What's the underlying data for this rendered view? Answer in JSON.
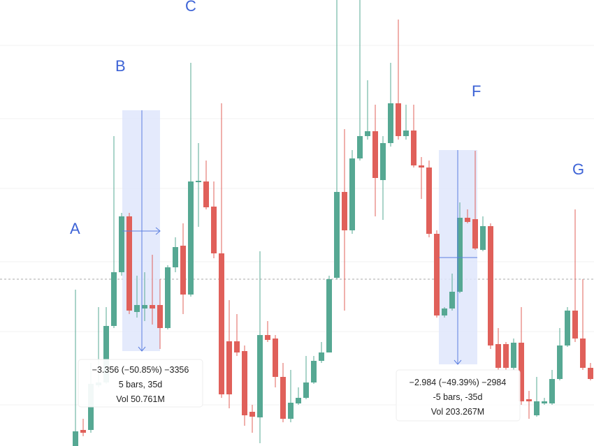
{
  "chart_data": {
    "type": "candlestick",
    "up_color": "#56a893",
    "down_color": "#e0605a",
    "ylim": [
      0,
      639
    ],
    "open": [
      0,
      23,
      23,
      87,
      91,
      172,
      249,
      329,
      192,
      197,
      202,
      202,
      169,
      256,
      287,
      217,
      378,
      379,
      343,
      276,
      150,
      150,
      136,
      49,
      41,
      159,
      154,
      99,
      39,
      61,
      69,
      91,
      122,
      134,
      241,
      364,
      309,
      412,
      444,
      451,
      381,
      434,
      491,
      444,
      452,
      402,
      399,
      304,
      187,
      197,
      221,
      327,
      325,
      281,
      315,
      146,
      146,
      112,
      148,
      67,
      44,
      61,
      61,
      96,
      144,
      194,
      154,
      112
    ],
    "high": [
      224,
      39,
      119,
      199,
      199,
      444,
      334,
      334,
      244,
      249,
      274,
      239,
      259,
      299,
      319,
      549,
      434,
      409,
      379,
      491,
      209,
      189,
      144,
      59,
      279,
      179,
      159,
      119,
      109,
      84,
      129,
      129,
      149,
      244,
      639,
      454,
      424,
      639,
      524,
      489,
      444,
      549,
      611,
      489,
      489,
      414,
      409,
      309,
      199,
      247,
      349,
      339,
      423,
      329,
      319,
      169,
      149,
      154,
      199,
      79,
      99,
      69,
      109,
      169,
      199,
      339,
      239,
      119
    ],
    "low": [
      0,
      14,
      19,
      84,
      89,
      169,
      244,
      189,
      184,
      179,
      174,
      139,
      167,
      249,
      189,
      214,
      314,
      339,
      269,
      69,
      54,
      129,
      29,
      19,
      4,
      149,
      84,
      34,
      34,
      59,
      67,
      89,
      119,
      134,
      239,
      194,
      304,
      409,
      439,
      329,
      324,
      429,
      439,
      439,
      399,
      354,
      299,
      184,
      184,
      194,
      219,
      319,
      281,
      279,
      139,
      109,
      109,
      109,
      59,
      39,
      42,
      59,
      59,
      94,
      142,
      149,
      109,
      94
    ],
    "close": [
      21,
      19,
      89,
      91,
      172,
      249,
      329,
      194,
      202,
      202,
      197,
      169,
      256,
      285,
      217,
      379,
      380,
      342,
      276,
      74,
      74,
      134,
      44,
      42,
      159,
      152,
      99,
      39,
      62,
      69,
      91,
      122,
      134,
      239,
      364,
      309,
      412,
      444,
      451,
      384,
      434,
      491,
      444,
      452,
      402,
      399,
      304,
      187,
      197,
      221,
      327,
      321,
      283,
      315,
      144,
      112,
      112,
      148,
      64,
      64,
      64,
      64,
      96,
      144,
      194,
      154,
      112,
      96
    ],
    "annotations": [
      {
        "text": "A"
      },
      {
        "text": "B"
      },
      {
        "text": "C"
      },
      {
        "text": "F"
      },
      {
        "text": "G"
      }
    ],
    "measurements": [
      {
        "lines": [
          "−3.356 (−50.85%) −3356",
          "5 bars, 35d",
          "Vol 50.761M"
        ]
      },
      {
        "lines": [
          "−2.984 (−49.39%) −2984",
          "-5 bars, -35d",
          "Vol 203.267M"
        ]
      }
    ]
  }
}
